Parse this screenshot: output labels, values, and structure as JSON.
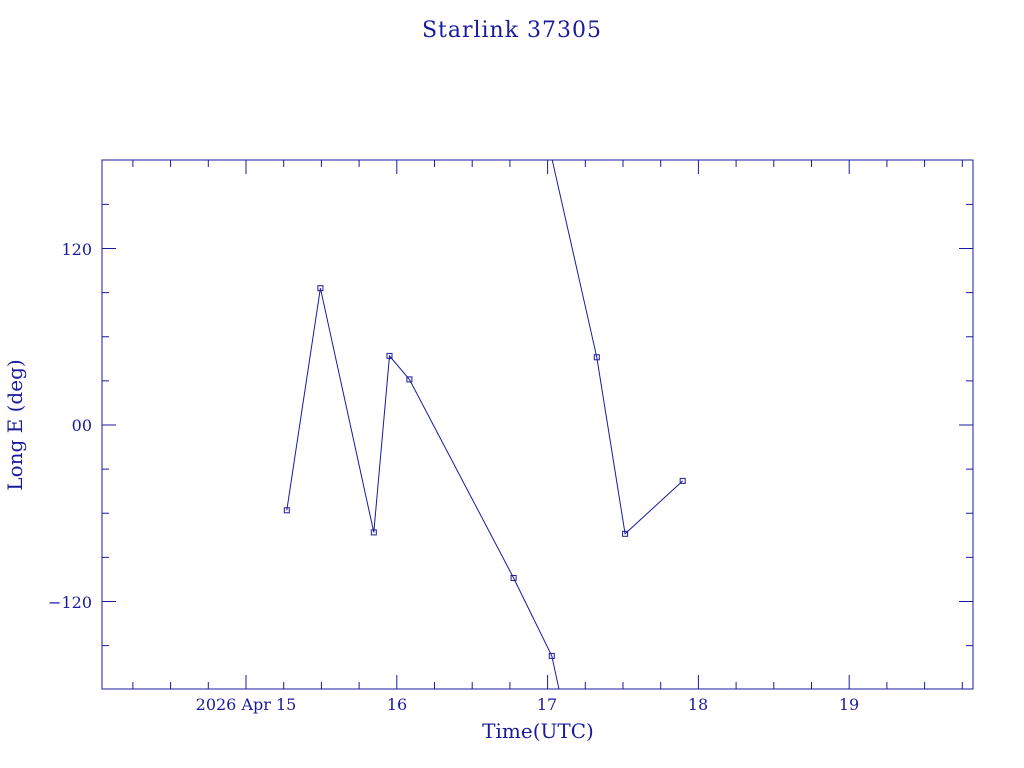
{
  "chart_data": {
    "type": "line",
    "title": "Starlink 37305",
    "xlabel": "Time(UTC)",
    "ylabel": "Long E (deg)",
    "x_tick_labels": [
      "2026 Apr 15",
      "16",
      "17",
      "18",
      "19"
    ],
    "y_tick_labels": [
      "−120",
      "00",
      "120"
    ],
    "series": [
      {
        "segments": [
          [
            {
              "x": "2026-04-15 06:30",
              "y": -58
            },
            {
              "x": "2026-04-15 11:50",
              "y": 93
            },
            {
              "x": "2026-04-15 20:20",
              "y": -73
            },
            {
              "x": "2026-04-15 22:50",
              "y": 47
            },
            {
              "x": "2026-04-16 02:00",
              "y": 31
            },
            {
              "x": "2026-04-16 18:35",
              "y": -104
            },
            {
              "x": "2026-04-17 00:40",
              "y": -157
            },
            {
              "x": "2026-04-17 01:50",
              "y": -180
            }
          ],
          [
            {
              "x": "2026-04-17 00:45",
              "y": 180
            },
            {
              "x": "2026-04-17 07:50",
              "y": 46
            },
            {
              "x": "2026-04-17 12:20",
              "y": -74
            },
            {
              "x": "2026-04-17 21:30",
              "y": -38
            }
          ]
        ]
      }
    ],
    "color": "#1a1a9c"
  }
}
